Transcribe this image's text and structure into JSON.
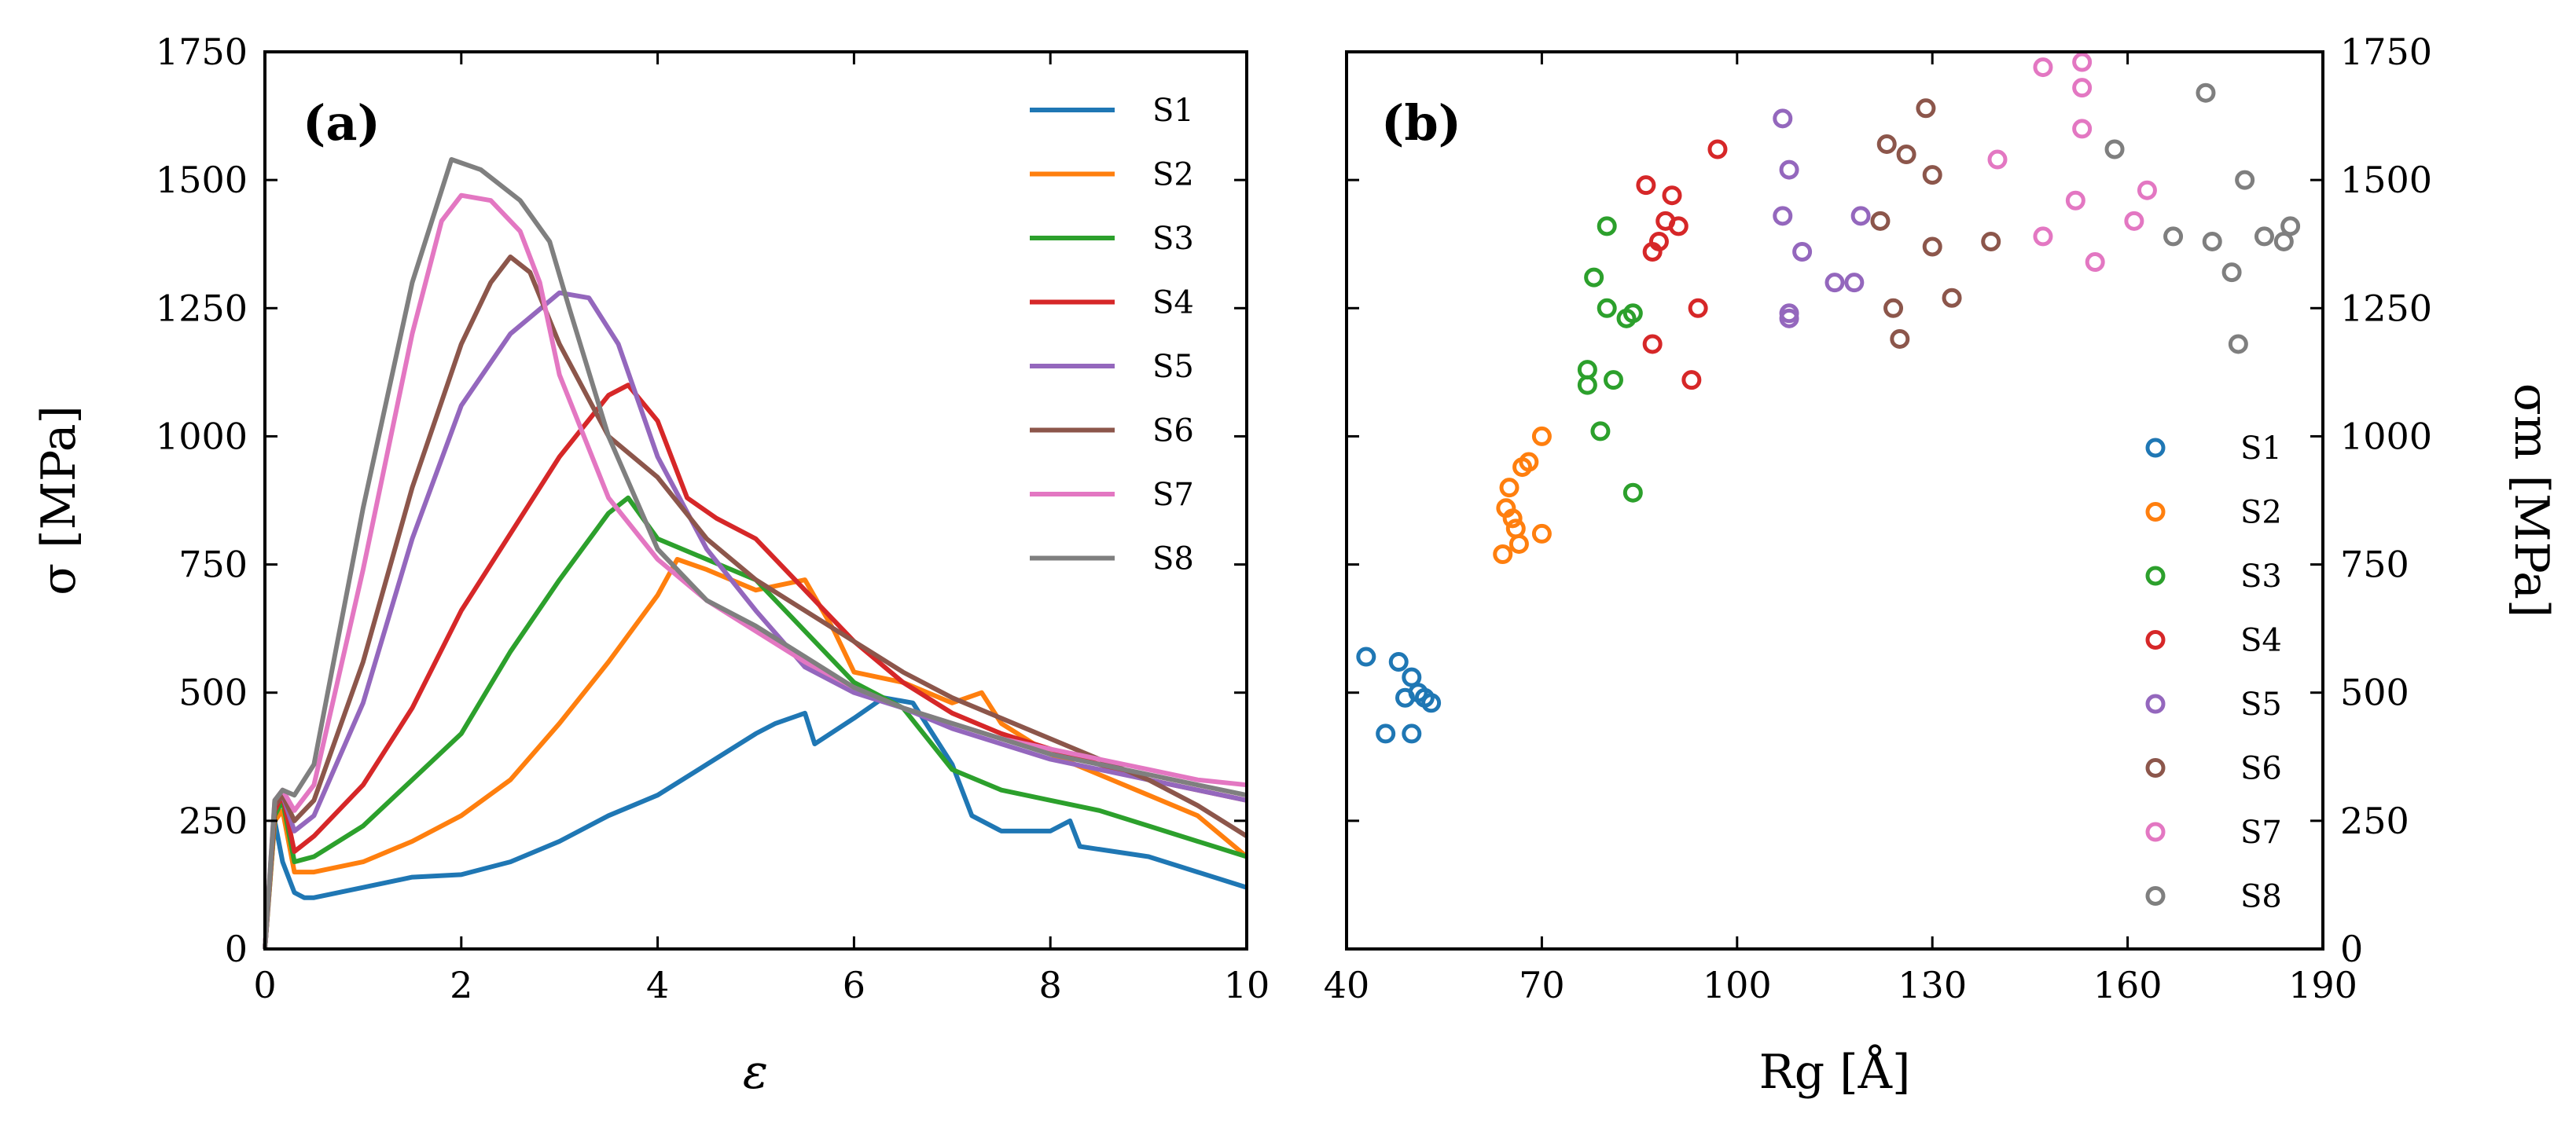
{
  "chart_data": [
    {
      "type": "line",
      "panel_label": "(a)",
      "xlabel": "ε",
      "ylabel": "σ [MPa]",
      "xlim": [
        0,
        10
      ],
      "ylim": [
        0,
        1750
      ],
      "xticks": [
        0,
        2,
        4,
        6,
        8,
        10
      ],
      "xtick_labels": [
        "0",
        "2",
        "4",
        "6",
        "8",
        "10"
      ],
      "yticks": [
        0,
        250,
        500,
        750,
        1000,
        1250,
        1500,
        1750
      ],
      "ytick_labels": [
        "0",
        "250",
        "500",
        "750",
        "1000",
        "1250",
        "1500",
        "1750"
      ],
      "grid": false,
      "legend_position": "top-right",
      "series": [
        {
          "name": "S1",
          "color": "#1f77b4",
          "x": [
            0,
            0.1,
            0.18,
            0.3,
            0.4,
            0.5,
            1,
            1.5,
            2,
            2.5,
            3,
            3.5,
            4,
            4.5,
            5,
            5.2,
            5.5,
            5.6,
            6,
            6.3,
            6.6,
            7,
            7.2,
            7.5,
            8,
            8.2,
            8.3,
            9,
            9.5,
            10
          ],
          "y": [
            0,
            250,
            170,
            110,
            100,
            100,
            120,
            140,
            145,
            170,
            210,
            260,
            300,
            360,
            420,
            440,
            460,
            400,
            450,
            490,
            480,
            360,
            260,
            230,
            230,
            250,
            200,
            180,
            150,
            120
          ]
        },
        {
          "name": "S2",
          "color": "#ff7f0e",
          "x": [
            0,
            0.1,
            0.18,
            0.3,
            0.5,
            1,
            1.5,
            2,
            2.5,
            3,
            3.5,
            4,
            4.2,
            4.5,
            5,
            5.5,
            5.8,
            6,
            6.5,
            7,
            7.3,
            7.5,
            8,
            8.5,
            9,
            9.5,
            10
          ],
          "y": [
            0,
            250,
            270,
            150,
            150,
            170,
            210,
            260,
            330,
            440,
            560,
            690,
            760,
            740,
            700,
            720,
            620,
            540,
            520,
            480,
            500,
            440,
            380,
            340,
            300,
            260,
            180
          ]
        },
        {
          "name": "S3",
          "color": "#2ca02c",
          "x": [
            0,
            0.1,
            0.18,
            0.3,
            0.5,
            1,
            1.5,
            2,
            2.5,
            3,
            3.5,
            3.7,
            4,
            4.5,
            5,
            5.5,
            6,
            6.5,
            7,
            7.5,
            8,
            8.5,
            9,
            9.5,
            10
          ],
          "y": [
            0,
            260,
            290,
            170,
            180,
            240,
            330,
            420,
            580,
            720,
            850,
            880,
            800,
            760,
            720,
            620,
            520,
            470,
            350,
            310,
            290,
            270,
            240,
            210,
            180
          ]
        },
        {
          "name": "S4",
          "color": "#d62728",
          "x": [
            0,
            0.1,
            0.18,
            0.3,
            0.5,
            1,
            1.5,
            2,
            2.5,
            3,
            3.5,
            3.7,
            4,
            4.3,
            4.6,
            5,
            5.5,
            6,
            6.5,
            7,
            7.5,
            8,
            8.5,
            9,
            9.5,
            10
          ],
          "y": [
            0,
            270,
            300,
            190,
            220,
            320,
            470,
            660,
            810,
            960,
            1080,
            1100,
            1030,
            880,
            840,
            800,
            700,
            600,
            520,
            460,
            420,
            390,
            360,
            330,
            310,
            290
          ]
        },
        {
          "name": "S5",
          "color": "#9467bd",
          "x": [
            0,
            0.1,
            0.18,
            0.3,
            0.5,
            1,
            1.5,
            2,
            2.5,
            3,
            3.3,
            3.6,
            4,
            4.5,
            5,
            5.5,
            6,
            6.5,
            7,
            7.5,
            8,
            8.5,
            9,
            9.5,
            10
          ],
          "y": [
            0,
            280,
            300,
            230,
            260,
            480,
            800,
            1060,
            1200,
            1280,
            1270,
            1180,
            960,
            780,
            660,
            550,
            500,
            470,
            430,
            400,
            370,
            350,
            330,
            310,
            290
          ]
        },
        {
          "name": "S6",
          "color": "#8c564b",
          "x": [
            0,
            0.1,
            0.18,
            0.3,
            0.5,
            1,
            1.5,
            2,
            2.3,
            2.5,
            2.7,
            3,
            3.5,
            4,
            4.5,
            5,
            5.5,
            6,
            6.5,
            7,
            7.5,
            8,
            8.5,
            9,
            9.5,
            10
          ],
          "y": [
            0,
            280,
            300,
            250,
            290,
            560,
            900,
            1180,
            1300,
            1350,
            1320,
            1180,
            1000,
            920,
            800,
            720,
            660,
            600,
            540,
            490,
            450,
            410,
            370,
            330,
            280,
            220
          ]
        },
        {
          "name": "S7",
          "color": "#e377c2",
          "x": [
            0,
            0.1,
            0.18,
            0.3,
            0.5,
            1,
            1.5,
            1.8,
            2,
            2.3,
            2.6,
            2.8,
            3,
            3.5,
            4,
            4.5,
            5,
            5.5,
            6,
            6.5,
            7,
            7.5,
            8,
            8.5,
            9,
            9.5,
            10
          ],
          "y": [
            0,
            290,
            310,
            270,
            320,
            740,
            1200,
            1420,
            1470,
            1460,
            1400,
            1300,
            1120,
            880,
            760,
            680,
            620,
            560,
            510,
            470,
            440,
            410,
            390,
            370,
            350,
            330,
            320
          ]
        },
        {
          "name": "S8",
          "color": "#7f7f7f",
          "x": [
            0,
            0.1,
            0.18,
            0.3,
            0.5,
            1,
            1.5,
            1.9,
            2.2,
            2.6,
            2.9,
            3.1,
            3.5,
            4,
            4.5,
            5,
            5.5,
            6,
            6.5,
            7,
            7.5,
            8,
            8.5,
            9,
            9.5,
            10
          ],
          "y": [
            0,
            290,
            310,
            300,
            360,
            860,
            1300,
            1540,
            1520,
            1460,
            1380,
            1250,
            1000,
            780,
            680,
            630,
            570,
            510,
            470,
            440,
            410,
            380,
            360,
            340,
            320,
            300
          ]
        }
      ]
    },
    {
      "type": "scatter",
      "panel_label": "(b)",
      "xlabel": "Rg [Å]",
      "ylabel": "σm [MPa]",
      "xlim": [
        40,
        190
      ],
      "ylim": [
        0,
        1750
      ],
      "xticks": [
        40,
        70,
        100,
        130,
        160,
        190
      ],
      "xtick_labels": [
        "40",
        "70",
        "100",
        "130",
        "160",
        "190"
      ],
      "yticks": [
        0,
        250,
        500,
        750,
        1000,
        1250,
        1500,
        1750
      ],
      "ytick_labels": [
        "0",
        "250",
        "500",
        "750",
        "1000",
        "1250",
        "1500",
        "1750"
      ],
      "grid": false,
      "legend_position": "lower-right",
      "series": [
        {
          "name": "S1",
          "color": "#1f77b4",
          "x": [
            43,
            48,
            46,
            49,
            50,
            51,
            52,
            53,
            50
          ],
          "y": [
            570,
            560,
            420,
            490,
            530,
            500,
            490,
            480,
            420
          ]
        },
        {
          "name": "S2",
          "color": "#ff7f0e",
          "x": [
            64,
            65,
            65.5,
            66,
            66.5,
            67,
            68,
            70,
            70,
            64.5
          ],
          "y": [
            770,
            900,
            840,
            820,
            790,
            940,
            950,
            1000,
            810,
            860
          ]
        },
        {
          "name": "S3",
          "color": "#2ca02c",
          "x": [
            77,
            77,
            78,
            80,
            79,
            80,
            81,
            83,
            84,
            84
          ],
          "y": [
            1100,
            1130,
            1310,
            1410,
            1010,
            1250,
            1110,
            1230,
            1240,
            890
          ]
        },
        {
          "name": "S4",
          "color": "#d62728",
          "x": [
            86,
            87,
            87,
            88,
            89,
            90,
            91,
            93,
            94,
            97
          ],
          "y": [
            1490,
            1360,
            1180,
            1380,
            1420,
            1470,
            1410,
            1110,
            1250,
            1560
          ]
        },
        {
          "name": "S5",
          "color": "#9467bd",
          "x": [
            107,
            107,
            108,
            108,
            108,
            110,
            115,
            118,
            119
          ],
          "y": [
            1620,
            1430,
            1240,
            1230,
            1520,
            1360,
            1300,
            1300,
            1430
          ]
        },
        {
          "name": "S6",
          "color": "#8c564b",
          "x": [
            122,
            123,
            124,
            125,
            126,
            129,
            130,
            130,
            133,
            139
          ],
          "y": [
            1420,
            1570,
            1250,
            1190,
            1550,
            1640,
            1510,
            1370,
            1270,
            1380
          ]
        },
        {
          "name": "S7",
          "color": "#e377c2",
          "x": [
            140,
            147,
            147,
            152,
            153,
            153,
            153,
            155,
            161,
            163
          ],
          "y": [
            1540,
            1390,
            1720,
            1460,
            1600,
            1680,
            1730,
            1340,
            1420,
            1480
          ]
        },
        {
          "name": "S8",
          "color": "#7f7f7f",
          "x": [
            158,
            167,
            172,
            173,
            176,
            177,
            178,
            181,
            184,
            185
          ],
          "y": [
            1560,
            1390,
            1670,
            1380,
            1320,
            1180,
            1500,
            1390,
            1380,
            1410
          ]
        }
      ]
    }
  ]
}
